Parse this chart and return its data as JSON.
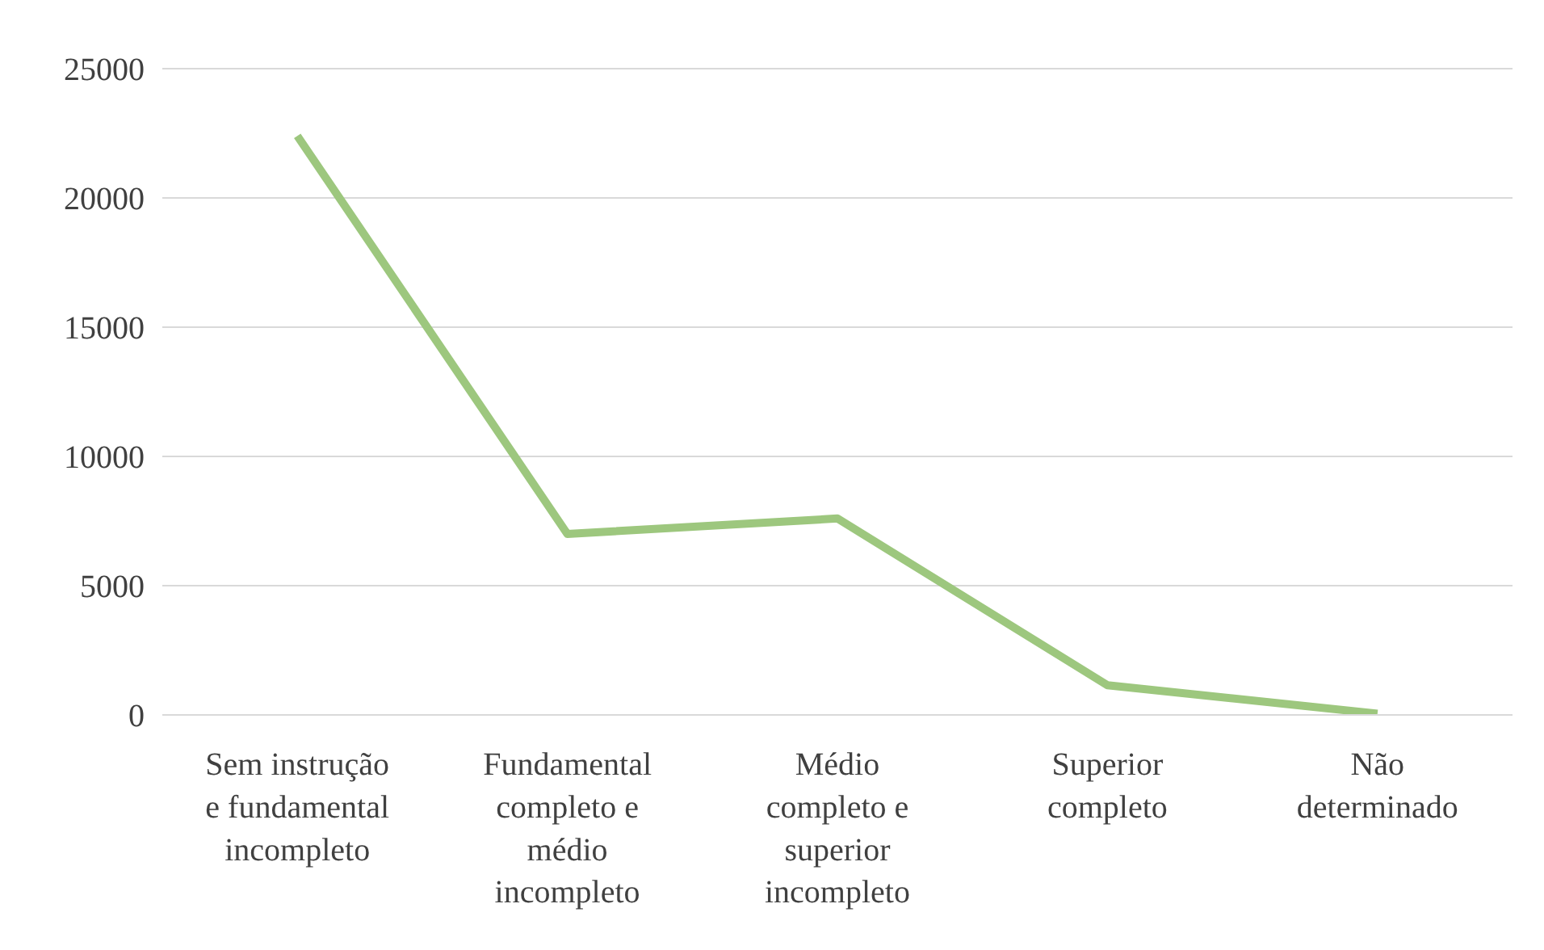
{
  "chart_data": {
    "type": "line",
    "categories": [
      "Sem instrução\ne fundamental\nincompleto",
      "Fundamental\ncompleto e\nmédio\nincompleto",
      "Médio\ncompleto e\nsuperior\nincompleto",
      "Superior\ncompleto",
      "Não\ndeterminado"
    ],
    "series": [
      {
        "color": "#9dc77e",
        "values": [
          22400,
          7000,
          7600,
          1150,
          50
        ]
      }
    ],
    "ylim": [
      0,
      25000
    ],
    "yticks": [
      0,
      5000,
      10000,
      15000,
      20000,
      25000
    ],
    "grid": "y",
    "marker": "none",
    "line_style": "solid"
  }
}
